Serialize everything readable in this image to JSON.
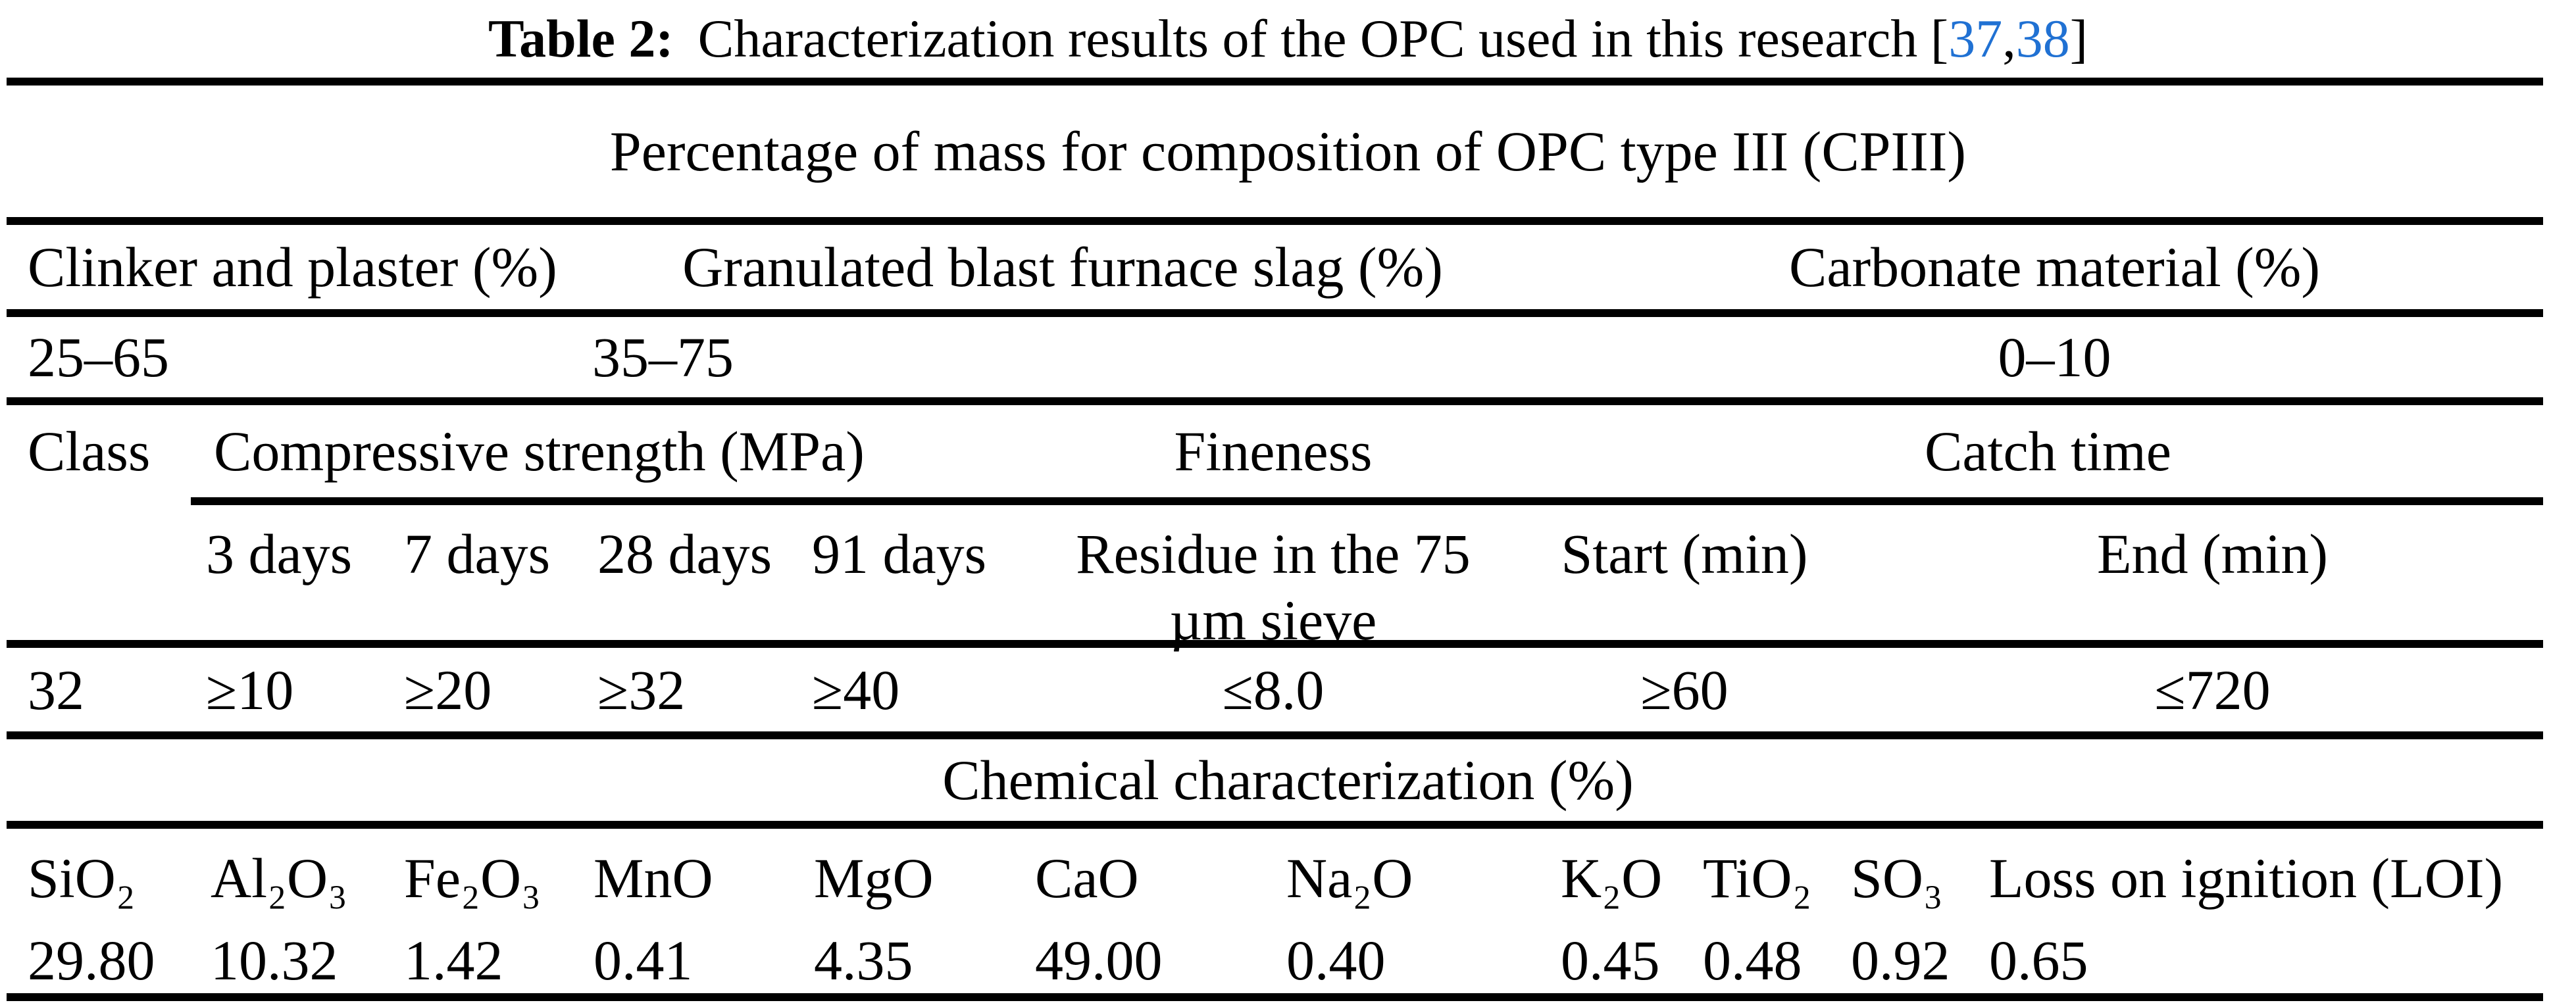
{
  "caption": {
    "label": "Table 2:",
    "text": "Characterization results of the OPC used in this research",
    "bracket_open": "[",
    "citation_1": "37",
    "comma": ",",
    "citation_2": "38",
    "bracket_close": "]"
  },
  "composition": {
    "title": "Percentage of mass for composition of OPC type III (CPIII)",
    "columns": [
      "Clinker and plaster (%)",
      "Granulated blast furnace slag (%)",
      "Carbonate material (%)"
    ],
    "values": [
      "25–65",
      "35–75",
      "0–10"
    ]
  },
  "physical": {
    "class_header": "Class",
    "groups": [
      "Compressive strength (MPa)",
      "Fineness",
      "Catch time"
    ],
    "subheaders": [
      "3 days",
      "7 days",
      "28 days",
      "91 days",
      "Residue in the 75 µm sieve",
      "Start (min)",
      "End (min)"
    ],
    "class_value": "32",
    "values": [
      "≥10",
      "≥20",
      "≥32",
      "≥40",
      "≤8.0",
      "≥60",
      "≤720"
    ]
  },
  "chemical": {
    "title": "Chemical characterization (%)",
    "columns": [
      "SiO₂",
      "Al₂O₃",
      "Fe₂O₃",
      "MnO",
      "MgO",
      "CaO",
      "Na₂O",
      "K₂O",
      "TiO₂",
      "SO₃",
      "Loss on ignition (LOI)"
    ],
    "values": [
      "29.80",
      "10.32",
      "1.42",
      "0.41",
      "4.35",
      "49.00",
      "0.40",
      "0.45",
      "0.48",
      "0.92",
      "0.65"
    ]
  },
  "colors": {
    "citation_blue": "#2071d3",
    "text": "#000000",
    "background": "#ffffff"
  }
}
